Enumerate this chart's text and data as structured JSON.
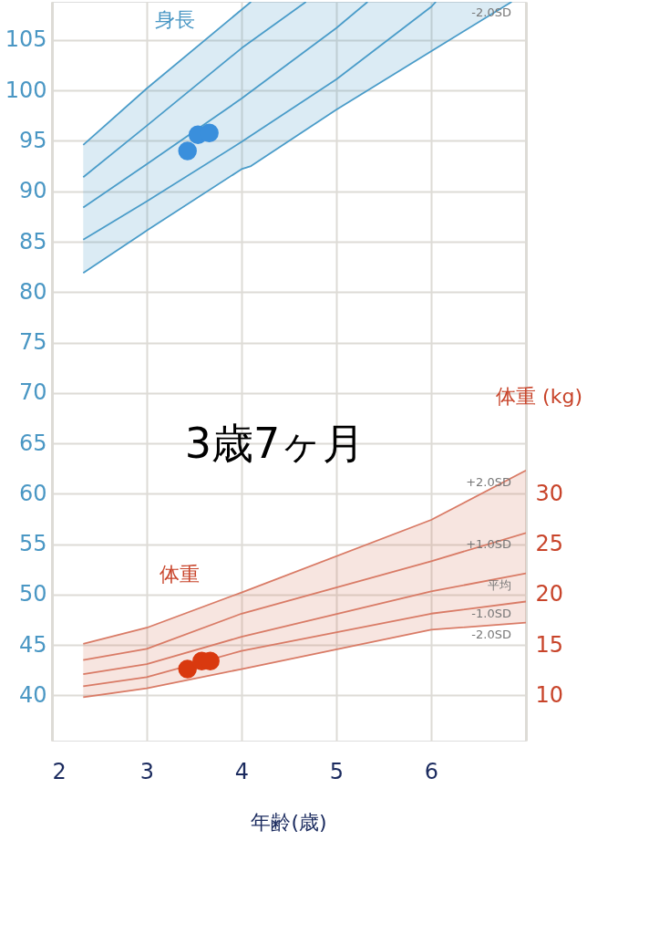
{
  "chart_data": {
    "type": "line",
    "xlabel": "年齢(歳)",
    "y2label": "体重 (kg)",
    "xlim": [
      2,
      7
    ],
    "xticks": [
      {
        "value": 2,
        "label": "2"
      },
      {
        "value": 3,
        "label": "3"
      },
      {
        "value": 4,
        "label": "4"
      },
      {
        "value": 5,
        "label": "5"
      },
      {
        "value": 6,
        "label": "6"
      }
    ],
    "ylim": [
      35.5,
      108.8
    ],
    "yticks": [
      40,
      45,
      50,
      55,
      60,
      65,
      70,
      75,
      80,
      85,
      90,
      95,
      100,
      105
    ],
    "y2lim": [
      5.5,
      78.8
    ],
    "y2ticks": [
      10,
      15,
      20,
      25,
      30
    ],
    "grid": true,
    "legend": false,
    "annotations": [
      "身長",
      "体重",
      "3歳7ヶ月"
    ],
    "series": [
      {
        "axis": "y",
        "color": "#4a9cc9",
        "x": [
          2.33,
          3,
          4.1
        ],
        "values": [
          94.6,
          100.2,
          108.8
        ]
      },
      {
        "axis": "y",
        "color": "#4a9cc9",
        "x": [
          2.33,
          3,
          4,
          4.68
        ],
        "values": [
          91.4,
          96.5,
          104.2,
          108.8
        ]
      },
      {
        "axis": "y",
        "color": "#4a9cc9",
        "x": [
          2.33,
          3,
          4,
          5,
          5.33
        ],
        "values": [
          88.4,
          92.7,
          99.2,
          106.2,
          108.8
        ]
      },
      {
        "axis": "y",
        "color": "#4a9cc9",
        "x": [
          2.33,
          3,
          4,
          5,
          6,
          6.05
        ],
        "values": [
          85.2,
          89.0,
          94.9,
          101.1,
          108.3,
          108.8
        ]
      },
      {
        "axis": "y",
        "color": "#4a9cc9",
        "name": "-2.0SD",
        "x": [
          2.33,
          3,
          4,
          4.1,
          5,
          6,
          6.85
        ],
        "values": [
          81.9,
          86.1,
          92.2,
          92.5,
          98.1,
          103.9,
          108.8
        ],
        "lower": [
          81.9,
          86.1,
          92.2,
          92.5,
          98.1,
          103.9,
          108.8
        ],
        "upper": [
          94.6,
          100.2,
          108.0,
          108.8,
          108.8,
          108.8,
          108.8
        ]
      },
      {
        "axis": "y2",
        "color": "#d97b66",
        "name": "+2.0SD",
        "x": [
          2.33,
          3,
          4,
          6,
          7
        ],
        "values": [
          15.1,
          16.7,
          20.2,
          27.4,
          32.3
        ]
      },
      {
        "axis": "y2",
        "color": "#d97b66",
        "name": "+1.0SD",
        "x": [
          2.33,
          3,
          4,
          6,
          7
        ],
        "values": [
          13.5,
          14.6,
          18.1,
          23.3,
          26.1
        ]
      },
      {
        "axis": "y2",
        "color": "#d97b66",
        "name": "平均",
        "x": [
          2.33,
          3,
          4,
          6,
          7
        ],
        "values": [
          12.1,
          13.1,
          15.8,
          20.3,
          22.1
        ]
      },
      {
        "axis": "y2",
        "color": "#d97b66",
        "name": "-1.0SD",
        "x": [
          2.33,
          3,
          4,
          6,
          7
        ],
        "values": [
          10.9,
          11.8,
          14.4,
          18.1,
          19.3
        ]
      },
      {
        "axis": "y2",
        "color": "#d97b66",
        "name": "-2.0SD",
        "x": [
          2.33,
          3,
          4,
          6,
          7
        ],
        "values": [
          9.8,
          10.7,
          12.6,
          16.5,
          17.2
        ],
        "lower": [
          9.8,
          10.7,
          12.6,
          16.5,
          17.2
        ],
        "upper": [
          15.1,
          16.7,
          20.2,
          27.4,
          32.3
        ]
      },
      {
        "type": "scatter",
        "axis": "y",
        "color": "#3a8fdc",
        "marker": "circle",
        "x": [
          3.43,
          3.54,
          3.66
        ],
        "values": [
          94.0,
          95.6,
          95.8
        ]
      },
      {
        "type": "scatter",
        "axis": "y2",
        "color": "#d9390f",
        "marker": "circle",
        "x": [
          3.43,
          3.58,
          3.67
        ],
        "values": [
          12.6,
          13.4,
          13.4
        ]
      }
    ]
  }
}
